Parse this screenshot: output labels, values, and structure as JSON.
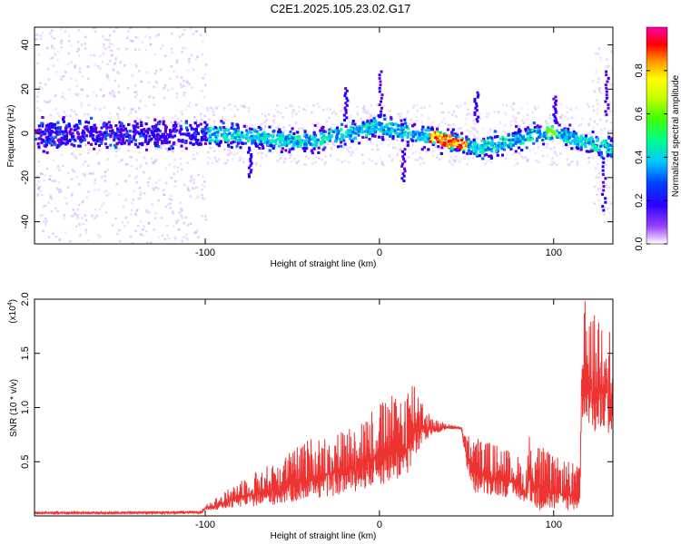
{
  "title": "C2E1.2025.105.23.02.G17",
  "spectrogram": {
    "type": "heatmap",
    "xlabel": "Height of straight line (km)",
    "ylabel": "Frequency (Hz)",
    "xlim": [
      -198,
      134
    ],
    "ylim": [
      -50,
      48
    ],
    "xticks": [
      -100,
      0,
      100
    ],
    "xtick_labels": [
      "-100",
      "0",
      "100"
    ],
    "yticks": [
      40,
      20,
      0,
      -20,
      -40
    ],
    "ytick_labels": [
      "40",
      "20",
      "0",
      "-20",
      "-40"
    ],
    "colorbar": {
      "label": "Normalized spectral amplitude",
      "range": [
        0,
        1
      ],
      "ticks": [
        0.0,
        0.2,
        0.4,
        0.6,
        0.8
      ],
      "tick_labels": [
        "0.0",
        "0.2",
        "0.4",
        "0.6",
        "0.8"
      ],
      "colors": [
        "#ffffff",
        "#6a00c8",
        "#0000ff",
        "#00c8ff",
        "#00ff66",
        "#aaff00",
        "#ffff00",
        "#ff8800",
        "#ff0000",
        "#ff00aa"
      ]
    },
    "ridge": {
      "x": [
        -198,
        -150,
        -100,
        -80,
        -60,
        -40,
        -20,
        -10,
        0,
        10,
        20,
        30,
        35,
        40,
        45,
        50,
        55,
        60,
        70,
        80,
        90,
        100,
        110,
        120,
        134
      ],
      "freq": [
        0,
        0,
        0,
        0,
        -2,
        -3,
        0,
        2,
        4,
        2,
        0,
        -1,
        -2,
        -3,
        -4,
        -5,
        -6,
        -5,
        -4,
        -2,
        0,
        1,
        -2,
        -4,
        -6
      ]
    }
  },
  "snr_panel": {
    "type": "line",
    "xlabel": "Height of straight line (km)",
    "ylabel": "SNR (10 * v/v)",
    "multiplier": "(x10",
    "multiplier_exp": "4",
    "multiplier_close": ")",
    "xlim": [
      -198,
      134
    ],
    "ylim": [
      0,
      2.0
    ],
    "xticks": [
      -100,
      0,
      100
    ],
    "xtick_labels": [
      "-100",
      "0",
      "100"
    ],
    "yticks": [
      2.0,
      1.5,
      1.0,
      0.5
    ],
    "ytick_labels": [
      "2.0",
      "1.5",
      "1.0",
      "0.5"
    ],
    "line_color": "#ee3333",
    "envelope": {
      "x": [
        -198,
        -150,
        -102,
        -100,
        -90,
        -80,
        -60,
        -40,
        -20,
        0,
        15,
        20,
        25,
        30,
        40,
        45,
        47,
        50,
        55,
        60,
        70,
        80,
        84,
        86,
        87,
        90,
        100,
        110,
        115,
        116,
        118,
        120,
        125,
        130,
        134
      ],
      "base": [
        0.02,
        0.02,
        0.02,
        0.05,
        0.06,
        0.08,
        0.1,
        0.15,
        0.2,
        0.28,
        0.35,
        0.5,
        0.65,
        0.75,
        0.8,
        0.8,
        0.8,
        0.45,
        0.2,
        0.2,
        0.18,
        0.15,
        0.1,
        0.22,
        0.1,
        0.05,
        0.05,
        0.05,
        0.05,
        0.9,
        0.9,
        0.85,
        0.7,
        0.8,
        0.7
      ],
      "peak": [
        0.04,
        0.04,
        0.05,
        0.12,
        0.2,
        0.35,
        0.5,
        0.72,
        0.8,
        1.05,
        1.18,
        1.3,
        1.1,
        0.9,
        0.85,
        0.83,
        0.82,
        0.75,
        0.75,
        0.7,
        0.65,
        0.55,
        0.35,
        0.85,
        0.6,
        0.7,
        0.55,
        0.5,
        0.45,
        1.5,
        2.0,
        1.8,
        1.9,
        2.0,
        1.5
      ]
    }
  }
}
